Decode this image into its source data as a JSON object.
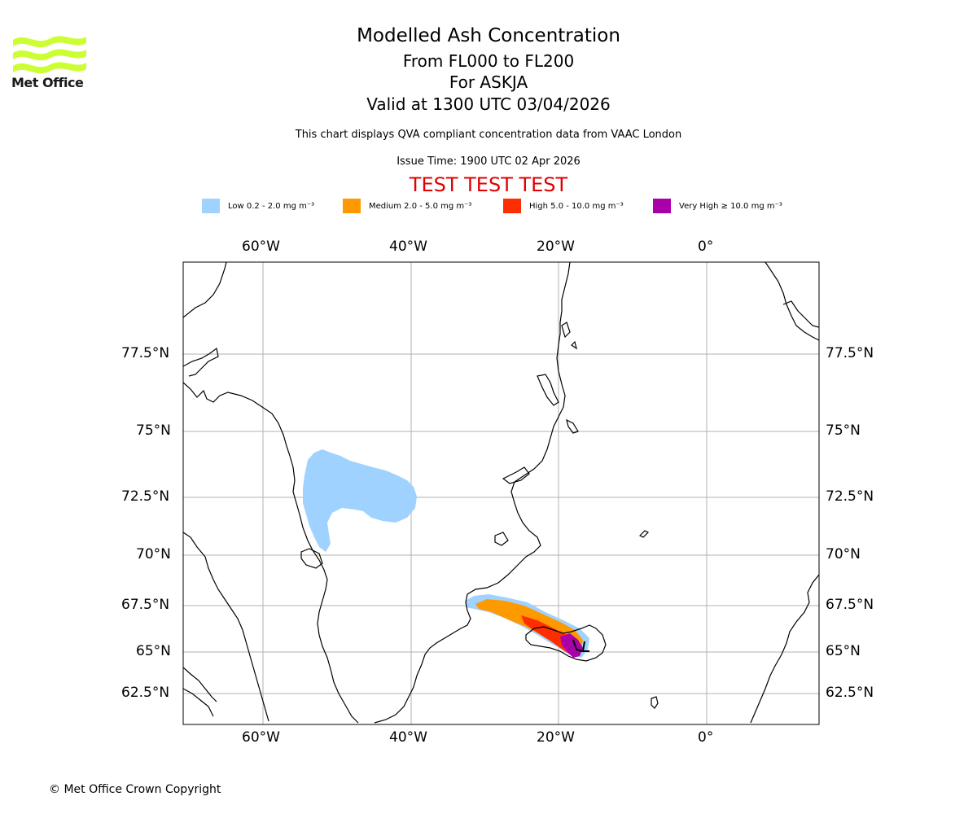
{
  "header": {
    "title": "Modelled Ash Concentration",
    "level_range": "From FL000 to FL200",
    "volcano": "For ASKJA",
    "valid_time": "Valid at 1300 UTC 03/04/2026",
    "note": "This chart displays QVA compliant concentration data from VAAC London",
    "issue_time": "Issue Time: 1900 UTC 02 Apr 2026",
    "test_banner": "TEST TEST TEST"
  },
  "logo": {
    "text": "Met Office",
    "color": "#ccff33"
  },
  "legend": [
    {
      "label": "Low 0.2 - 2.0 mg m⁻³",
      "color": "#a0d2ff"
    },
    {
      "label": "Medium 2.0 - 5.0 mg m⁻³",
      "color": "#ff9900"
    },
    {
      "label": "High 5.0 - 10.0 mg m⁻³",
      "color": "#ff2e00"
    },
    {
      "label": "Very High  ≥  10.0 mg m⁻³",
      "color": "#aa00aa"
    }
  ],
  "map": {
    "lon_labels": [
      "60°W",
      "40°W",
      "20°W",
      "0°"
    ],
    "lat_labels": [
      "77.5°N",
      "75°N",
      "72.5°N",
      "70°N",
      "67.5°N",
      "65°N",
      "62.5°N"
    ]
  },
  "footer": {
    "copyright": "© Met Office Crown Copyright"
  }
}
